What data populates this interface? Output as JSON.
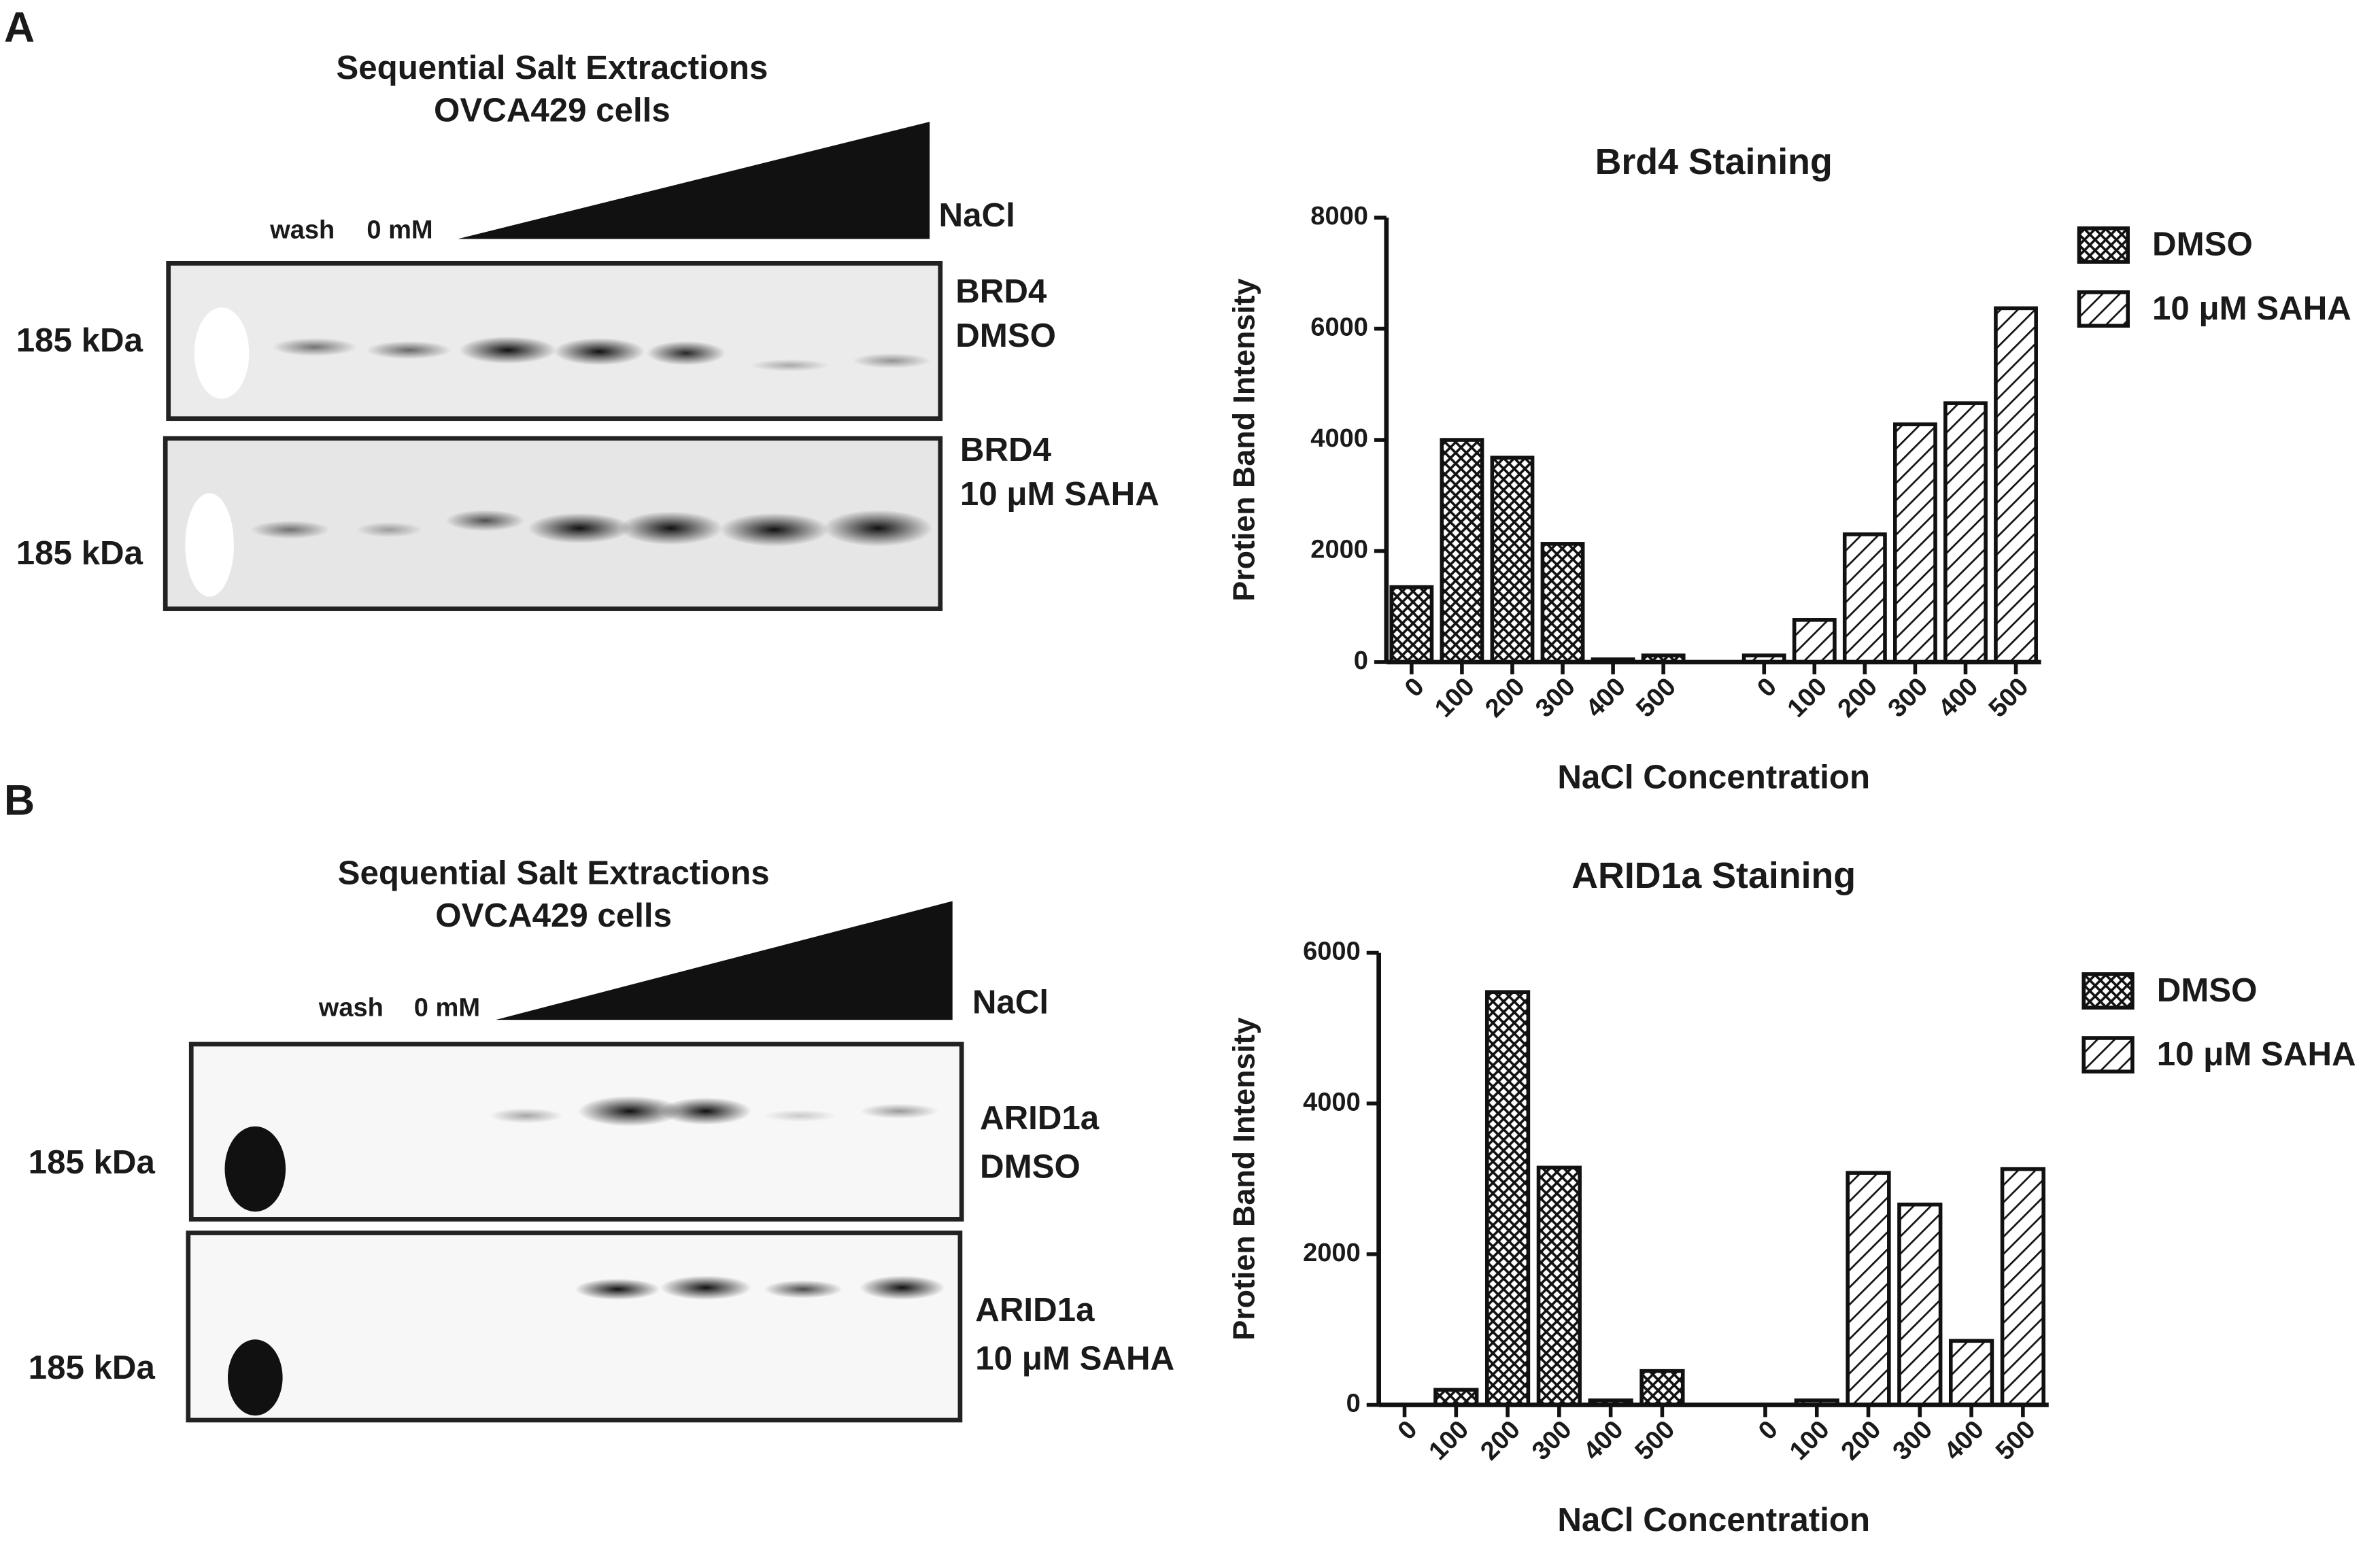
{
  "panels": [
    {
      "letter": "A",
      "blot": {
        "title": [
          "Sequential Salt Extractions",
          "OVCA429 cells"
        ],
        "lanes": [
          "wash",
          "0 mM"
        ],
        "gradient": "NaCl",
        "rows": [
          {
            "marker": "185 kDa",
            "label": [
              "BRD4",
              "DMSO"
            ]
          },
          {
            "marker": "185 kDa",
            "label": [
              "BRD4",
              "10 μM SAHA"
            ]
          }
        ]
      }
    },
    {
      "letter": "B",
      "blot": {
        "title": [
          "Sequential Salt Extractions",
          "OVCA429 cells"
        ],
        "lanes": [
          "wash",
          "0 mM"
        ],
        "gradient": "NaCl",
        "rows": [
          {
            "marker": "185 kDa",
            "label": [
              "ARID1a",
              "DMSO"
            ]
          },
          {
            "marker": "185 kDa",
            "label": [
              "ARID1a",
              "10 μM SAHA"
            ]
          }
        ]
      }
    }
  ],
  "chart_data": [
    {
      "type": "bar",
      "title": "Brd4  Staining",
      "x_label": "NaCl Concentration",
      "y_label": "Protien Band Intensity",
      "categories": [
        "0",
        "100",
        "200",
        "300",
        "400",
        "500",
        "0",
        "100",
        "200",
        "300",
        "400",
        "500"
      ],
      "series": [
        {
          "name": "DMSO",
          "color": "#111111",
          "pattern": "crosshatch",
          "values": [
            1350,
            4000,
            3680,
            2130,
            50,
            120,
            null,
            null,
            null,
            null,
            null,
            null
          ]
        },
        {
          "name": "10 μM SAHA",
          "color": "#111111",
          "pattern": "diagonal",
          "values": [
            null,
            null,
            null,
            null,
            null,
            null,
            120,
            760,
            2300,
            4280,
            4660,
            6370
          ]
        }
      ],
      "ylim": [
        0,
        8000
      ],
      "yticks": [
        0,
        2000,
        4000,
        6000,
        8000
      ],
      "grid": false,
      "legend": "right"
    },
    {
      "type": "bar",
      "title": "ARID1a Staining",
      "x_label": "NaCl Concentration",
      "y_label": "Protien Band Intensity",
      "categories": [
        "0",
        "100",
        "200",
        "300",
        "400",
        "500",
        "0",
        "100",
        "200",
        "300",
        "400",
        "500"
      ],
      "series": [
        {
          "name": "DMSO",
          "color": "#111111",
          "pattern": "crosshatch",
          "values": [
            0,
            200,
            5480,
            3150,
            60,
            450,
            null,
            null,
            null,
            null,
            null,
            null
          ]
        },
        {
          "name": "10 μM SAHA",
          "color": "#111111",
          "pattern": "diagonal",
          "values": [
            null,
            null,
            null,
            null,
            null,
            null,
            0,
            60,
            3080,
            2660,
            850,
            3130
          ]
        }
      ],
      "ylim": [
        0,
        6000
      ],
      "yticks": [
        0,
        2000,
        4000,
        6000
      ],
      "grid": false,
      "legend": "right"
    }
  ]
}
